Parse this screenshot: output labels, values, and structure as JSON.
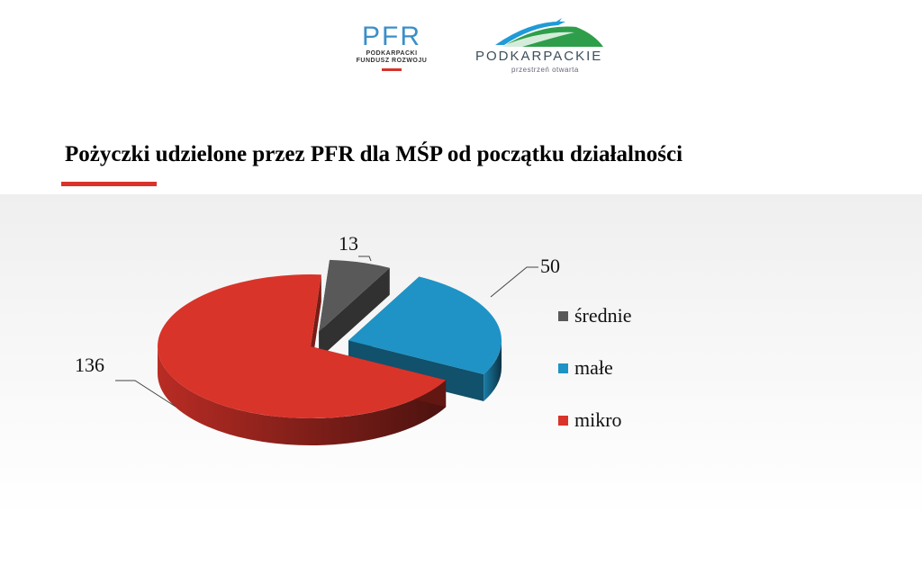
{
  "header": {
    "pfr_logo": {
      "word": "PFR",
      "line1": "PODKARPACKI",
      "line2": "FUNDUSZ ROZWOJU"
    },
    "podkarpackie_logo": {
      "word": "PODKARPACKIE",
      "tagline": "przestrzeń otwarta"
    }
  },
  "title": "Pożyczki udzielone przez PFR dla MŚP od początku działalności",
  "colors": {
    "accent_red": "#d9322a",
    "pfr_blue": "#3a8fc8",
    "srednie": "#595959",
    "male": "#1f93c5",
    "mikro": "#d9342a"
  },
  "chart_data": {
    "type": "pie",
    "style": "3d-exploded",
    "categories": [
      "średnie",
      "małe",
      "mikro"
    ],
    "values": [
      13,
      50,
      136
    ],
    "data_labels": [
      "13",
      "50",
      "136"
    ],
    "legend_position": "right"
  }
}
